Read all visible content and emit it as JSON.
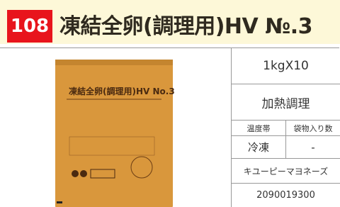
{
  "header": {
    "number": "108",
    "title": "凍結全卵(調理用)HV №.3"
  },
  "image": {
    "package_label": "凍結全卵(調理用)HV No.3"
  },
  "specs": {
    "pack": "1kgX10",
    "method": "加熱調理",
    "storage_label": "温度帯",
    "count_label": "袋物入り数",
    "storage": "冷凍",
    "count": "-",
    "maker": "キユーピーマヨネーズ",
    "code": "2090019300"
  }
}
